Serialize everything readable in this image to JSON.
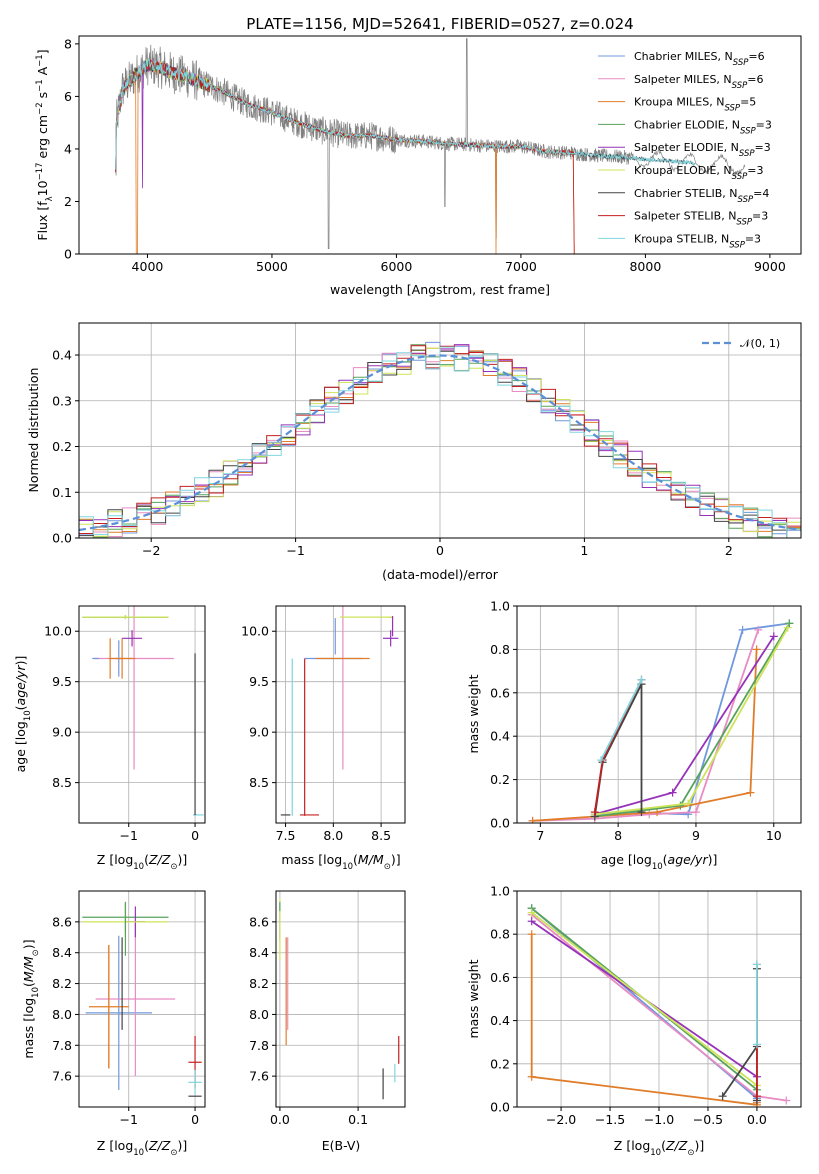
{
  "colors": {
    "chabrier_miles": "#6f98dc",
    "salpeter_miles": "#e88cc4",
    "kroupa_miles": "#e07d2a",
    "chabrier_elodie": "#58a35c",
    "salpeter_elodie": "#9632b8",
    "kroupa_elodie": "#cde35a",
    "chabrier_stelib": "#444444",
    "salpeter_stelib": "#c42020",
    "kroupa_stelib": "#7fd6e0",
    "grid": "#b0b0b0",
    "normal": "#5b8fd6",
    "data": "#808080"
  },
  "chart_data": [
    {
      "id": "spectrum",
      "type": "line",
      "title": "PLATE=1156, MJD=52641, FIBERID=0527, z=0.024",
      "xlabel": "wavelength [Angstrom, rest frame]",
      "ylabel": "Flux [f",
      "xlim": [
        3450,
        9250
      ],
      "ylim": [
        0,
        8.3
      ],
      "xticks": [
        "4000",
        "5000",
        "6000",
        "7000",
        "8000",
        "9000"
      ],
      "yticks": [
        "0",
        "2",
        "4",
        "6",
        "8"
      ],
      "legend_position": "top-right",
      "legend": [
        {
          "text": "Chabrier MILES, N",
          "sub": "SSP",
          "val": "=6",
          "color": "chabrier_miles"
        },
        {
          "text": "Salpeter MILES, N",
          "sub": "SSP",
          "val": "=6",
          "color": "salpeter_miles"
        },
        {
          "text": "Kroupa MILES, N",
          "sub": "SSP",
          "val": "=5",
          "color": "kroupa_miles"
        },
        {
          "text": "Chabrier ELODIE, N",
          "sub": "SSP",
          "val": "=3",
          "color": "chabrier_elodie"
        },
        {
          "text": "Salpeter ELODIE, N",
          "sub": "SSP",
          "val": "=3",
          "color": "salpeter_elodie"
        },
        {
          "text": "Kroupa ELODIE, N",
          "sub": "SSP",
          "val": "=3",
          "color": "kroupa_elodie"
        },
        {
          "text": "Chabrier STELIB, N",
          "sub": "SSP",
          "val": "=4",
          "color": "chabrier_stelib"
        },
        {
          "text": "Salpeter STELIB, N",
          "sub": "SSP",
          "val": "=3",
          "color": "salpeter_stelib"
        },
        {
          "text": "Kroupa STELIB, N",
          "sub": "SSP",
          "val": "=3",
          "color": "kroupa_stelib"
        }
      ],
      "data_anchors": {
        "x": [
          3750,
          3800,
          3900,
          4000,
          4100,
          4200,
          4400,
          4600,
          4800,
          5000,
          5200,
          5400,
          5600,
          5800,
          6000,
          6200,
          6400,
          6600,
          6800,
          7000,
          7200,
          7400,
          7600,
          7800,
          8000,
          8200,
          8400,
          8600,
          8800,
          9000,
          9200
        ],
        "y": [
          5.0,
          6.3,
          6.8,
          7.2,
          7.1,
          6.9,
          6.6,
          6.2,
          5.7,
          5.4,
          5.0,
          4.7,
          4.5,
          4.5,
          4.35,
          4.3,
          4.2,
          4.15,
          4.1,
          4.1,
          3.9,
          3.85,
          3.75,
          3.7,
          3.6,
          3.55,
          3.45,
          3.4,
          3.35,
          3.3,
          3.3
        ]
      }
    },
    {
      "id": "residuals",
      "type": "line",
      "xlabel": "(data-model)/error",
      "ylabel": "Normed distribution",
      "xlim": [
        -2.5,
        2.5
      ],
      "ylim": [
        0,
        0.47
      ],
      "xticks": [
        "−2",
        "−1",
        "0",
        "1",
        "2"
      ],
      "yticks": [
        "0.0",
        "0.1",
        "0.2",
        "0.3",
        "0.4"
      ],
      "legend_position": "top-right",
      "legend": {
        "text": "𝒩(0, 1)",
        "color": "normal"
      }
    },
    {
      "id": "age_vs_Z",
      "type": "scatter",
      "xlabel": "Z [log",
      "ylabel": "age  [log",
      "xlim": [
        -1.75,
        0.15
      ],
      "ylim": [
        8.1,
        10.25
      ],
      "xticks": [
        "−1",
        "0"
      ],
      "yticks": [
        "8.5",
        "9.0",
        "9.5",
        "10.0"
      ],
      "points": [
        {
          "c": "chabrier_miles",
          "x": -1.15,
          "xerr": 0.05,
          "y": 9.73,
          "yerr": 0.18
        },
        {
          "c": "salpeter_miles",
          "x": -0.92,
          "xerr": 0.6,
          "y": 9.73,
          "yerr": 1.1
        },
        {
          "c": "kroupa_miles",
          "x": -1.1,
          "xerr": 0.2,
          "y": 9.73,
          "yerr": 0.2
        },
        {
          "c": "chabrier_elodie",
          "x": -1.05,
          "xerr": 0.65,
          "y": 10.14,
          "yerr": 0.02
        },
        {
          "c": "salpeter_elodie",
          "x": -0.95,
          "xerr": 0.15,
          "y": 9.93,
          "yerr": 0.08
        },
        {
          "c": "kroupa_elodie",
          "x": -1.05,
          "xerr": 0.65,
          "y": 10.14,
          "yerr": 0.02
        },
        {
          "c": "chabrier_stelib",
          "x": 0.0,
          "xerr": 0.02,
          "y": 8.18,
          "yerr": 0.0
        },
        {
          "c": "salpeter_stelib",
          "x": 0.0,
          "xerr": 0.02,
          "y": 8.18,
          "yerr": 0.0
        },
        {
          "c": "kroupa_stelib",
          "x": 0.05,
          "xerr": 0.08,
          "y": 8.18,
          "yerr": 0.0
        },
        {
          "c": "chabrier_stelib",
          "x": 0.0,
          "xerr": 0.0,
          "y": 8.98,
          "yerr": 0.8
        },
        {
          "c": "chabrier_miles",
          "x": -1.5,
          "xerr": 0.05,
          "y": 9.73,
          "yerr": 0.0
        },
        {
          "c": "kroupa_miles",
          "x": -1.28,
          "xerr": 0.0,
          "y": 9.73,
          "yerr": 0.2
        }
      ]
    },
    {
      "id": "age_vs_mass",
      "type": "scatter",
      "xlabel": "mass [log",
      "ylabel": "",
      "xlim": [
        7.4,
        8.75
      ],
      "ylim": [
        8.1,
        10.25
      ],
      "xticks": [
        "7.5",
        "8.0",
        "8.5"
      ],
      "yticks": [
        "8.5",
        "9.0",
        "9.5",
        "10.0"
      ],
      "points": [
        {
          "c": "chabrier_miles",
          "x": 8.0,
          "xerr": 0.3,
          "y": 9.73,
          "yerr": 0.0
        },
        {
          "c": "salpeter_miles",
          "x": 8.1,
          "xerr": 0.0,
          "y": 9.73,
          "yerr": 1.1
        },
        {
          "c": "kroupa_miles",
          "x": 8.1,
          "xerr": 0.28,
          "y": 9.73,
          "yerr": 0.0
        },
        {
          "c": "chabrier_elodie",
          "x": 8.6,
          "xerr": 0.02,
          "y": 10.14,
          "yerr": 0.0
        },
        {
          "c": "salpeter_elodie",
          "x": 8.6,
          "xerr": 0.08,
          "y": 9.93,
          "yerr": 0.08
        },
        {
          "c": "kroupa_elodie",
          "x": 8.35,
          "xerr": 0.28,
          "y": 10.14,
          "yerr": 0.0
        },
        {
          "c": "chabrier_stelib",
          "x": 7.5,
          "xerr": 0.05,
          "y": 8.18,
          "yerr": 0.0
        },
        {
          "c": "salpeter_stelib",
          "x": 7.75,
          "xerr": 0.1,
          "y": 8.18,
          "yerr": 0.0
        },
        {
          "c": "salpeter_stelib",
          "x": 7.7,
          "xerr": 0.0,
          "y": 8.95,
          "yerr": 0.78
        },
        {
          "c": "kroupa_stelib",
          "x": 7.57,
          "xerr": 0.0,
          "y": 8.95,
          "yerr": 0.78
        },
        {
          "c": "chabrier_miles",
          "x": 8.02,
          "xerr": 0.0,
          "y": 9.95,
          "yerr": 0.18
        },
        {
          "c": "salpeter_elodie",
          "x": 8.62,
          "xerr": 0.0,
          "y": 10.05,
          "yerr": 0.1
        }
      ]
    },
    {
      "id": "massweight_vs_age",
      "type": "line",
      "xlabel": "age  [log",
      "ylabel": "mass weight",
      "xlim": [
        6.7,
        10.35
      ],
      "ylim": [
        0.0,
        1.0
      ],
      "xticks": [
        "7",
        "8",
        "9",
        "10"
      ],
      "yticks": [
        "0.0",
        "0.2",
        "0.4",
        "0.6",
        "0.8",
        "1.0"
      ],
      "series": [
        {
          "c": "chabrier_miles",
          "x": [
            7.7,
            8.0,
            8.9,
            9.6,
            10.2
          ],
          "y": [
            0.03,
            0.05,
            0.04,
            0.89,
            0.92
          ]
        },
        {
          "c": "salpeter_miles",
          "x": [
            6.9,
            7.7,
            8.4,
            9.0,
            9.8
          ],
          "y": [
            0.01,
            0.02,
            0.04,
            0.05,
            0.89
          ]
        },
        {
          "c": "kroupa_miles",
          "x": [
            6.9,
            7.7,
            8.5,
            9.7,
            9.78
          ],
          "y": [
            0.01,
            0.03,
            0.05,
            0.14,
            0.8
          ]
        },
        {
          "c": "chabrier_elodie",
          "x": [
            7.7,
            8.8,
            10.2
          ],
          "y": [
            0.03,
            0.08,
            0.92
          ]
        },
        {
          "c": "salpeter_elodie",
          "x": [
            7.7,
            8.7,
            10.0
          ],
          "y": [
            0.04,
            0.14,
            0.86
          ]
        },
        {
          "c": "kroupa_elodie",
          "x": [
            7.7,
            8.9,
            10.18
          ],
          "y": [
            0.04,
            0.09,
            0.9
          ]
        },
        {
          "c": "chabrier_stelib",
          "x": [
            7.7,
            7.8,
            8.3,
            8.3
          ],
          "y": [
            0.03,
            0.28,
            0.64,
            0.05
          ]
        },
        {
          "c": "salpeter_stelib",
          "x": [
            7.7,
            7.8,
            8.3
          ],
          "y": [
            0.05,
            0.29,
            0.66
          ]
        },
        {
          "c": "kroupa_stelib",
          "x": [
            7.78,
            8.3
          ],
          "y": [
            0.29,
            0.66
          ]
        }
      ]
    },
    {
      "id": "mass_vs_Z",
      "type": "scatter",
      "xlabel": "Z [log",
      "ylabel": "mass [log",
      "xlim": [
        -1.75,
        0.15
      ],
      "ylim": [
        7.4,
        8.8
      ],
      "xticks": [
        "−1",
        "0"
      ],
      "yticks": [
        "7.6",
        "7.8",
        "8.0",
        "8.2",
        "8.4",
        "8.6"
      ],
      "points": [
        {
          "c": "chabrier_miles",
          "x": -1.15,
          "xerr": 0.5,
          "y": 8.01,
          "yerr": 0.5
        },
        {
          "c": "salpeter_miles",
          "x": -0.9,
          "xerr": 0.6,
          "y": 8.1,
          "yerr": 0.5
        },
        {
          "c": "kroupa_miles",
          "x": -1.3,
          "xerr": 0.3,
          "y": 8.05,
          "yerr": 0.4
        },
        {
          "c": "chabrier_elodie",
          "x": -1.05,
          "xerr": 0.65,
          "y": 8.63,
          "yerr": 0.1
        },
        {
          "c": "salpeter_elodie",
          "x": -0.9,
          "xerr": 0.15,
          "y": 8.6,
          "yerr": 0.1
        },
        {
          "c": "kroupa_elodie",
          "x": -1.05,
          "xerr": 0.65,
          "y": 8.6,
          "yerr": 0.1
        },
        {
          "c": "chabrier_stelib",
          "x": 0.0,
          "xerr": 0.1,
          "y": 7.47,
          "yerr": 0.0
        },
        {
          "c": "salpeter_stelib",
          "x": 0.0,
          "xerr": 0.1,
          "y": 7.69,
          "yerr": 0.17
        },
        {
          "c": "kroupa_stelib",
          "x": 0.0,
          "xerr": 0.1,
          "y": 7.56,
          "yerr": 0.08
        },
        {
          "c": "kroupa_miles",
          "x": -1.3,
          "xerr": 0.0,
          "y": 8.05,
          "yerr": 0.4
        },
        {
          "c": "chabrier_elodie",
          "x": -1.05,
          "xerr": 0.0,
          "y": 8.55,
          "yerr": 0.17
        },
        {
          "c": "chabrier_stelib",
          "x": -1.1,
          "xerr": 0.0,
          "y": 8.2,
          "yerr": 0.3
        }
      ]
    },
    {
      "id": "mass_vs_ebv",
      "type": "scatter",
      "xlabel": "E(B-V)",
      "ylabel": "",
      "xlim": [
        -0.005,
        0.16
      ],
      "ylim": [
        7.4,
        8.8
      ],
      "xticks": [
        "0.0",
        "0.1"
      ],
      "yticks": [
        "7.6",
        "7.8",
        "8.0",
        "8.2",
        "8.4",
        "8.6"
      ],
      "points": [
        {
          "c": "chabrier_miles",
          "x": 0.0,
          "xerr": 0.0,
          "y": 8.6,
          "yerr": 0.12
        },
        {
          "c": "salpeter_miles",
          "x": 0.01,
          "xerr": 0.0,
          "y": 8.2,
          "yerr": 0.3
        },
        {
          "c": "kroupa_miles",
          "x": 0.008,
          "xerr": 0.0,
          "y": 8.15,
          "yerr": 0.35
        },
        {
          "c": "kroupa_elodie",
          "x": 0.0,
          "xerr": 0.0,
          "y": 8.55,
          "yerr": 0.2
        },
        {
          "c": "chabrier_stelib",
          "x": 0.132,
          "xerr": 0.0,
          "y": 7.55,
          "yerr": 0.1
        },
        {
          "c": "salpeter_stelib",
          "x": 0.152,
          "xerr": 0.0,
          "y": 7.77,
          "yerr": 0.09
        },
        {
          "c": "kroupa_stelib",
          "x": 0.147,
          "xerr": 0.0,
          "y": 7.62,
          "yerr": 0.06
        },
        {
          "c": "chabrier_elodie",
          "x": 0.0,
          "xerr": 0.0,
          "y": 8.7,
          "yerr": 0.03
        }
      ]
    },
    {
      "id": "massweight_vs_Z",
      "type": "line",
      "xlabel": "Z [log",
      "ylabel": "mass weight",
      "xlim": [
        -2.45,
        0.45
      ],
      "ylim": [
        0.0,
        1.0
      ],
      "xticks": [
        "−2.0",
        "−1.5",
        "−1.0",
        "−0.5",
        "0.0"
      ],
      "yticks": [
        "0.0",
        "0.2",
        "0.4",
        "0.6",
        "0.8",
        "1.0"
      ],
      "series": [
        {
          "c": "chabrier_miles",
          "x": [
            -2.3,
            0.0,
            0.0
          ],
          "y": [
            0.92,
            0.04,
            0.03
          ]
        },
        {
          "c": "salpeter_miles",
          "x": [
            -2.3,
            0.0,
            0.3
          ],
          "y": [
            0.89,
            0.05,
            0.03
          ]
        },
        {
          "c": "kroupa_miles",
          "x": [
            -2.3,
            -2.3,
            0.0,
            0.0
          ],
          "y": [
            0.8,
            0.14,
            0.01,
            0.02
          ]
        },
        {
          "c": "chabrier_elodie",
          "x": [
            -2.3,
            0.0
          ],
          "y": [
            0.92,
            0.08
          ]
        },
        {
          "c": "salpeter_elodie",
          "x": [
            -2.3,
            0.0
          ],
          "y": [
            0.86,
            0.14
          ]
        },
        {
          "c": "kroupa_elodie",
          "x": [
            -2.3,
            0.0
          ],
          "y": [
            0.9,
            0.1
          ]
        },
        {
          "c": "chabrier_stelib",
          "x": [
            -0.35,
            0.0,
            0.0,
            0.0
          ],
          "y": [
            0.05,
            0.28,
            0.64,
            0.03
          ]
        },
        {
          "c": "salpeter_stelib",
          "x": [
            0.0,
            0.0
          ],
          "y": [
            0.05,
            0.66
          ]
        },
        {
          "c": "kroupa_stelib",
          "x": [
            0.0,
            0.0
          ],
          "y": [
            0.29,
            0.66
          ]
        }
      ]
    }
  ]
}
